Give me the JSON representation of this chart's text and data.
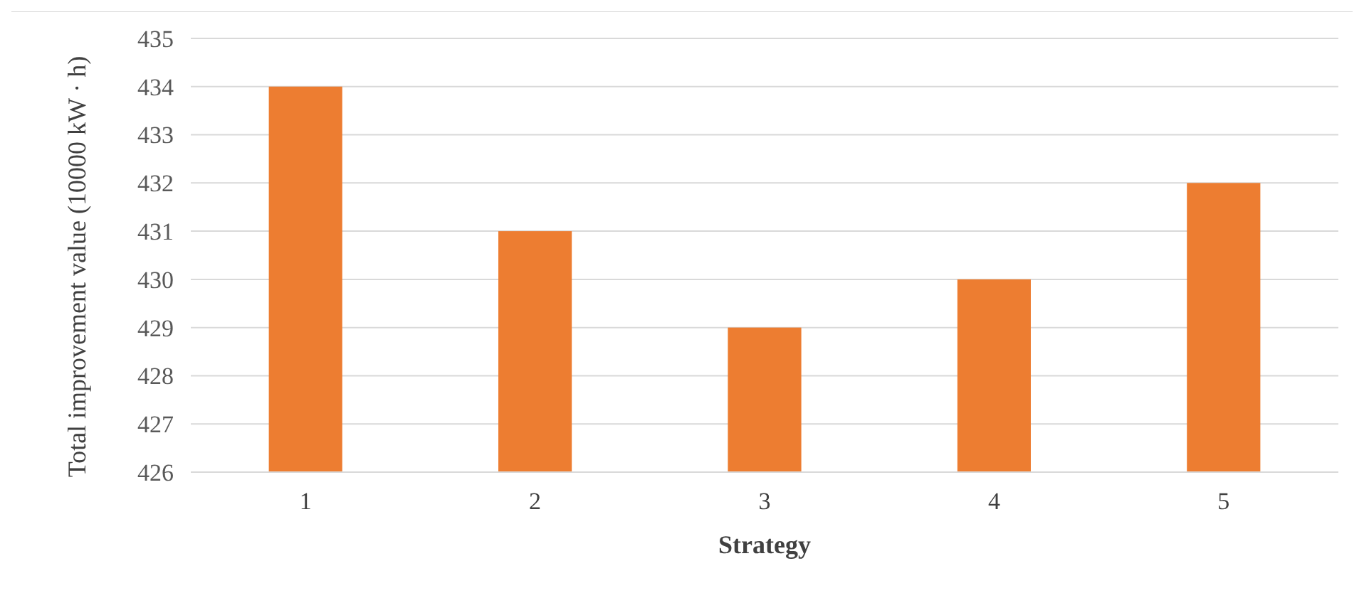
{
  "chart_data": {
    "type": "bar",
    "xlabel": "Strategy",
    "ylabel": "Total improvement value (10000 kW · h)",
    "categories": [
      "1",
      "2",
      "3",
      "4",
      "5"
    ],
    "values": [
      434,
      431,
      429,
      430,
      432
    ],
    "color": "#ed7d31",
    "ylim": [
      426,
      435
    ],
    "yticks": [
      426,
      427,
      428,
      429,
      430,
      431,
      432,
      433,
      434,
      435
    ],
    "grid": "y"
  }
}
